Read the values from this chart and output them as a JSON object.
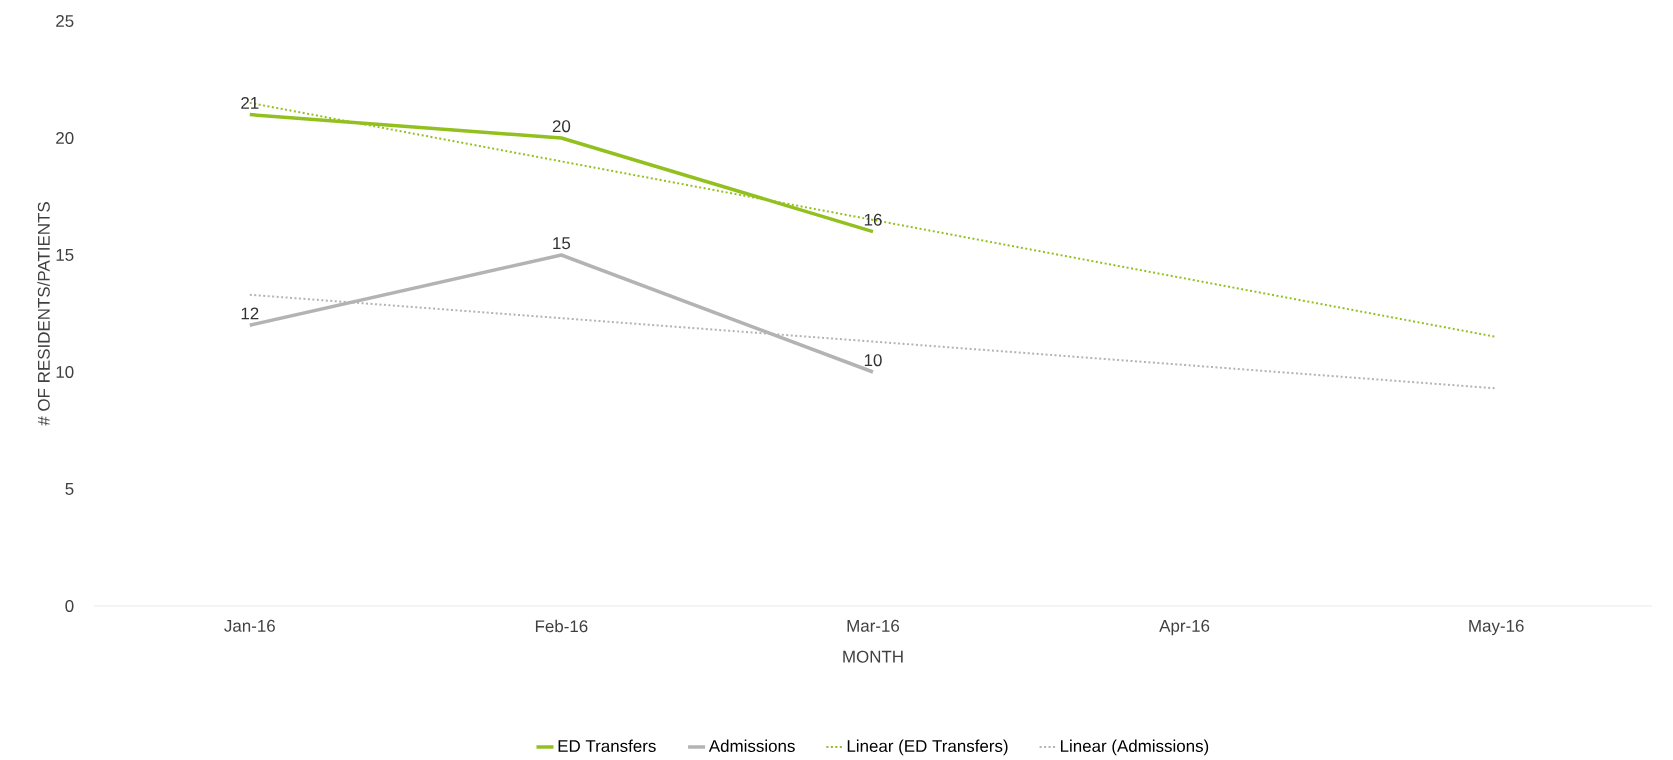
{
  "chart_data": {
    "type": "line",
    "xlabel": "MONTH",
    "ylabel": "# OF RESIDENTS/PATIENTS",
    "categories": [
      "Jan-16",
      "Feb-16",
      "Mar-16",
      "Apr-16",
      "May-16"
    ],
    "series": [
      {
        "name": "ED Transfers",
        "color": "#92c01f",
        "values": [
          21,
          20,
          16,
          null,
          null
        ],
        "value_labels": [
          "21",
          "20",
          "16",
          null,
          null
        ],
        "line_style": "solid"
      },
      {
        "name": "Admissions",
        "color": "#b3b3b3",
        "values": [
          12,
          15,
          10,
          null,
          null
        ],
        "value_labels": [
          "12",
          "15",
          "10",
          null,
          null
        ],
        "line_style": "solid"
      },
      {
        "name": "Linear (ED Transfers)",
        "color": "#92c01f",
        "values": [
          21.5,
          19,
          16.5,
          14,
          11.5
        ],
        "line_style": "dotted"
      },
      {
        "name": "Linear (Admissions)",
        "color": "#b3b3b3",
        "values": [
          13.3,
          12.3,
          11.3,
          10.3,
          9.3
        ],
        "line_style": "dotted"
      }
    ],
    "ylim": [
      0,
      25
    ],
    "yticks": [
      0,
      5,
      10,
      15,
      20,
      25
    ],
    "grid": false,
    "legend": "bottom",
    "marker": "none"
  }
}
